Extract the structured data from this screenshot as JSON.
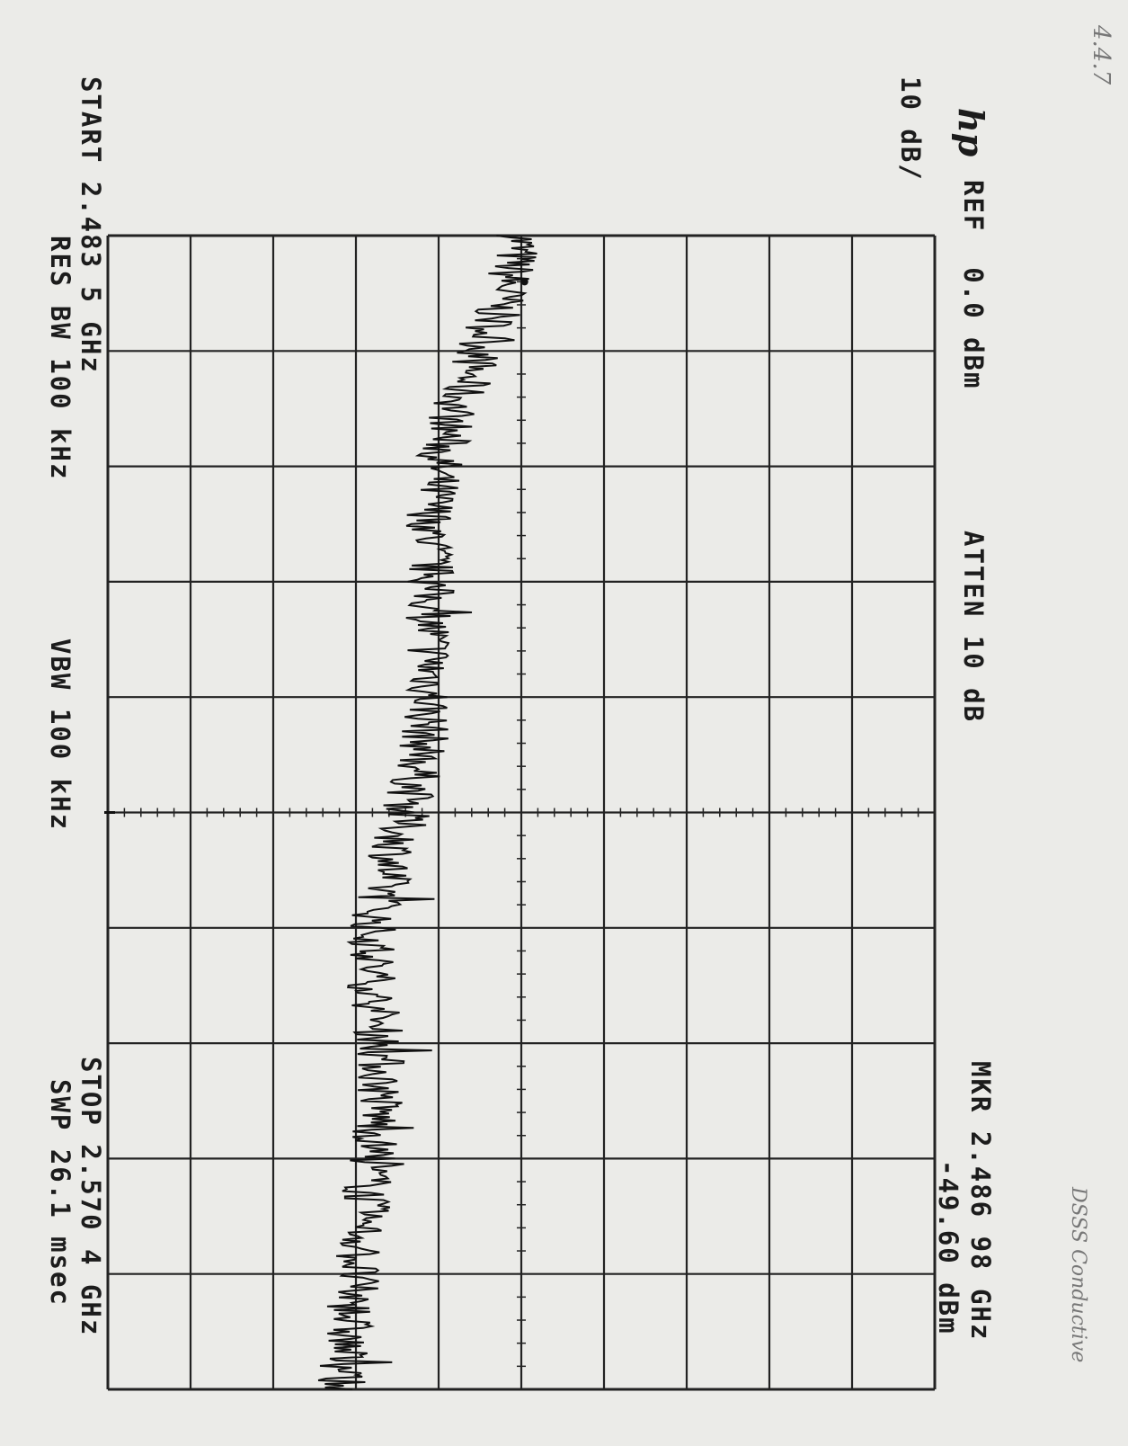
{
  "annotation": {
    "page_number": "4.4.7",
    "note": "DSSS Conductive"
  },
  "header": {
    "logo": "hp",
    "scale": "10 dB/",
    "ref": "REF  0.0 dBm",
    "atten": "ATTEN 10 dB",
    "marker_freq": "MKR 2.486 98 GHz",
    "marker_level": "-49.60 dBm"
  },
  "footer": {
    "start": "START 2.483 5 GHz",
    "res_bw": "RES BW 100 kHz",
    "vbw": "VBW 100 kHz",
    "stop": "STOP 2.570 4 GHz",
    "sweep": "SWP 26.1 msec"
  },
  "colors": {
    "trace": "#111111",
    "grid": "#222222",
    "paper": "#ebebe8"
  },
  "chart_data": {
    "type": "line",
    "x_unit": "GHz",
    "y_unit": "dBm",
    "xlim": [
      2.4835,
      2.5704
    ],
    "ylim": [
      -100,
      0
    ],
    "grid": true,
    "reference_level": 0.0,
    "marker": {
      "x": 2.48698,
      "y": -49.6
    },
    "x": [
      2.4835,
      2.4878,
      2.4922,
      2.4965,
      2.5009,
      2.5052,
      2.5096,
      2.5139,
      2.5183,
      2.5226,
      2.527,
      2.5313,
      2.5357,
      2.54,
      2.5444,
      2.5487,
      2.5531,
      2.5574,
      2.5618,
      2.5661,
      2.5704
    ],
    "values": [
      -50,
      -52,
      -55,
      -58,
      -60,
      -61,
      -61,
      -61,
      -61,
      -62,
      -64,
      -66,
      -68,
      -68,
      -67,
      -67,
      -68,
      -69,
      -70,
      -71,
      -72
    ]
  }
}
